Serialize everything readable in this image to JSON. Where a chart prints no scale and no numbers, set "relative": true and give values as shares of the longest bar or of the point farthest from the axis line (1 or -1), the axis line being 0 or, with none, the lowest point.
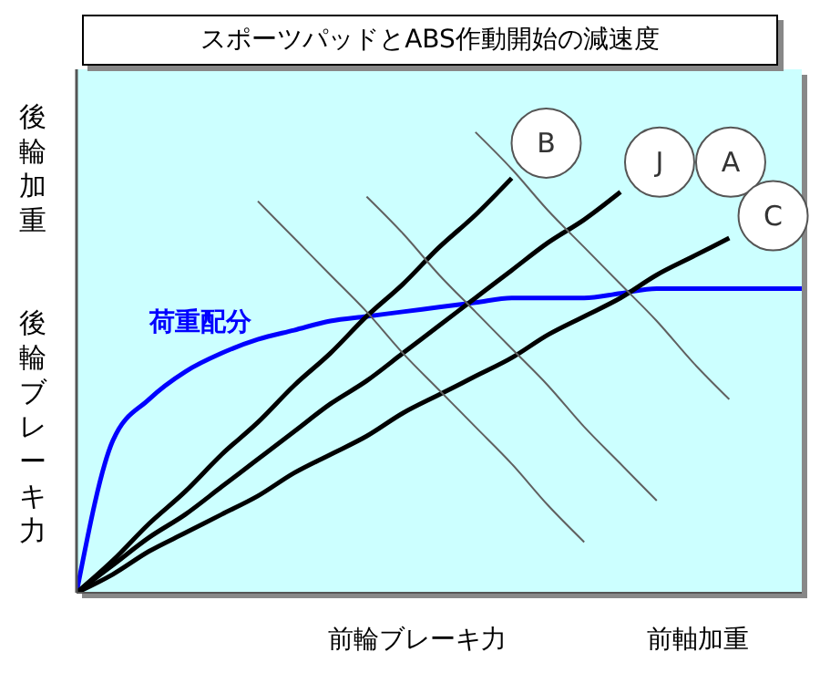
{
  "chart_data": {
    "type": "line",
    "title": "スポーツパッドとABS作動開始の減速度",
    "xlabel": "前輪ブレーキ力",
    "ylabel": "後輪ブレーキ力",
    "annotations": [
      "A",
      "後輪加重",
      "前軸加重"
    ],
    "categories": [
      null,
      null,
      null,
      null,
      null,
      null,
      null,
      null,
      null,
      null,
      null,
      null,
      null,
      null,
      null,
      null,
      null,
      null,
      null,
      null,
      null
    ],
    "relative": true,
    "grid": false,
    "legend": false,
    "marker": "none",
    "line_style": "solid",
    "series": [
      {
        "name": "荷重配分",
        "color": "#0000ff",
        "values": [
          0,
          0.33,
          0.42,
          0.48,
          0.52,
          0.55,
          0.57,
          0.59,
          0.6,
          0.61,
          0.62,
          0.63,
          0.64,
          0.64,
          0.64,
          0.65,
          0.66,
          0.66,
          0.66,
          0.66,
          0.66
        ]
      },
      {
        "name": "B",
        "color": "#000000",
        "values": [
          0,
          0.07,
          0.15,
          0.22,
          0.3,
          0.37,
          0.45,
          0.52,
          0.6,
          0.67,
          0.75,
          0.82,
          0.9,
          null,
          null,
          null,
          null,
          null,
          null,
          null,
          null
        ]
      },
      {
        "name": "J",
        "color": "#000000",
        "values": [
          0,
          0.06,
          0.12,
          0.17,
          0.23,
          0.29,
          0.35,
          0.41,
          0.46,
          0.52,
          0.58,
          0.64,
          0.7,
          0.76,
          0.81,
          0.87,
          null,
          null,
          null,
          null,
          null
        ]
      },
      {
        "name": "C",
        "color": "#000000",
        "values": [
          0,
          0.04,
          0.09,
          0.13,
          0.17,
          0.21,
          0.26,
          0.3,
          0.34,
          0.39,
          0.43,
          0.47,
          0.51,
          0.56,
          0.6,
          0.64,
          0.69,
          0.73,
          0.77,
          null,
          null
        ]
      },
      {
        "color": "#606060",
        "values": [
          null,
          null,
          null,
          null,
          null,
          0.85,
          0.77,
          0.69,
          0.61,
          0.52,
          0.44,
          0.36,
          0.28,
          0.19,
          0.11,
          null,
          null,
          null,
          null,
          null,
          null
        ]
      },
      {
        "color": "#606060",
        "values": [
          null,
          null,
          null,
          null,
          null,
          null,
          null,
          null,
          0.86,
          0.78,
          0.69,
          0.61,
          0.53,
          0.45,
          0.36,
          0.28,
          0.2,
          null,
          null,
          null,
          null
        ]
      },
      {
        "color": "#606060",
        "values": [
          null,
          null,
          null,
          null,
          null,
          null,
          null,
          null,
          null,
          null,
          null,
          1,
          0.92,
          0.83,
          0.75,
          0.67,
          0.59,
          0.5,
          0.42,
          null,
          null
        ]
      }
    ]
  }
}
